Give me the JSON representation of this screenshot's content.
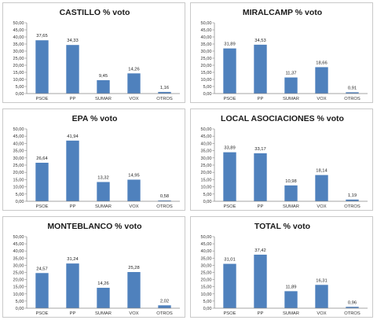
{
  "chart_data": [
    {
      "type": "bar",
      "title": "CASTILLO    % voto",
      "categories": [
        "PSOE",
        "PP",
        "SUMAR",
        "VOX",
        "OTROS"
      ],
      "values": [
        37.65,
        34.33,
        9.45,
        14.26,
        1.16
      ],
      "value_labels": [
        "37,65",
        "34,33",
        "9,45",
        "14,26",
        "1,16"
      ],
      "ylim": [
        0,
        50
      ],
      "yticks": [
        "0,00",
        "5,00",
        "10,00",
        "15,00",
        "20,00",
        "25,00",
        "30,00",
        "35,00",
        "40,00",
        "45,00",
        "50,00"
      ],
      "grid": false,
      "legend": "none",
      "bar_color": "#4f81bd"
    },
    {
      "type": "bar",
      "title": "MIRALCAMP    % voto",
      "categories": [
        "PSOE",
        "PP",
        "SUMAR",
        "VOX",
        "OTROS"
      ],
      "values": [
        31.89,
        34.53,
        11.37,
        18.66,
        0.91
      ],
      "value_labels": [
        "31,89",
        "34,53",
        "11,37",
        "18,66",
        "0,91"
      ],
      "ylim": [
        0,
        50
      ],
      "yticks": [
        "0,00",
        "5,00",
        "10,00",
        "15,00",
        "20,00",
        "25,00",
        "30,00",
        "35,00",
        "40,00",
        "45,00",
        "50,00"
      ],
      "grid": false,
      "legend": "none",
      "bar_color": "#4f81bd"
    },
    {
      "type": "bar",
      "title": "EPA  % voto",
      "categories": [
        "PSOE",
        "PP",
        "SUMAR",
        "VOX",
        "OTROS"
      ],
      "values": [
        26.64,
        41.94,
        13.32,
        14.95,
        0.58
      ],
      "value_labels": [
        "26,64",
        "41,94",
        "13,32",
        "14,95",
        "0,58"
      ],
      "ylim": [
        0,
        50
      ],
      "yticks": [
        "0,00",
        "5,00",
        "10,00",
        "15,00",
        "20,00",
        "25,00",
        "30,00",
        "35,00",
        "40,00",
        "45,00",
        "50,00"
      ],
      "grid": false,
      "legend": "none",
      "bar_color": "#4f81bd"
    },
    {
      "type": "bar",
      "title": "LOCAL ASOCIACIONES   % voto",
      "categories": [
        "PSOE",
        "PP",
        "SUMAR",
        "VOX",
        "OTROS"
      ],
      "values": [
        33.89,
        33.17,
        10.98,
        18.14,
        1.19
      ],
      "value_labels": [
        "33,89",
        "33,17",
        "10,98",
        "18,14",
        "1,19"
      ],
      "ylim": [
        0,
        50
      ],
      "yticks": [
        "0,00",
        "5,00",
        "10,00",
        "15,00",
        "20,00",
        "25,00",
        "30,00",
        "35,00",
        "40,00",
        "45,00",
        "50,00"
      ],
      "grid": false,
      "legend": "none",
      "bar_color": "#4f81bd"
    },
    {
      "type": "bar",
      "title": "MONTEBLANCO   % voto",
      "categories": [
        "PSOE",
        "PP",
        "SUMAR",
        "VOX",
        "OTROS"
      ],
      "values": [
        24.57,
        31.24,
        14.26,
        25.28,
        2.02
      ],
      "value_labels": [
        "24,57",
        "31,24",
        "14,26",
        "25,28",
        "2,02"
      ],
      "ylim": [
        0,
        50
      ],
      "yticks": [
        "0,00",
        "5,00",
        "10,00",
        "15,00",
        "20,00",
        "25,00",
        "30,00",
        "35,00",
        "40,00",
        "45,00",
        "50,00"
      ],
      "grid": false,
      "legend": "none",
      "bar_color": "#4f81bd"
    },
    {
      "type": "bar",
      "title": "TOTAL   % voto",
      "categories": [
        "PSOE",
        "PP",
        "SUMAR",
        "VOX",
        "OTROS"
      ],
      "values": [
        31.01,
        37.42,
        11.89,
        16.31,
        0.96
      ],
      "value_labels": [
        "31,01",
        "37,42",
        "11,89",
        "16,31",
        "0,96"
      ],
      "ylim": [
        0,
        50
      ],
      "yticks": [
        "0,00",
        "5,00",
        "10,00",
        "15,00",
        "20,00",
        "25,00",
        "30,00",
        "35,00",
        "40,00",
        "45,00",
        "50,00"
      ],
      "grid": false,
      "legend": "none",
      "bar_color": "#4f81bd"
    }
  ]
}
